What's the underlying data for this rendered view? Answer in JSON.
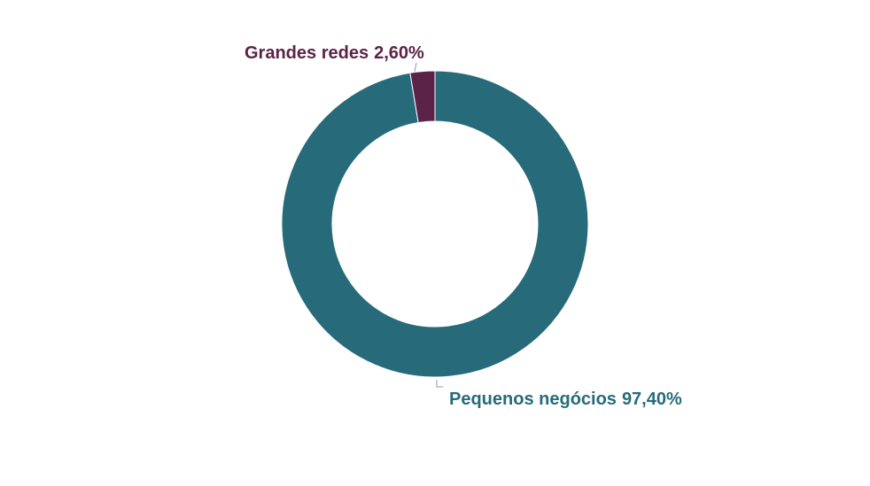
{
  "chart_data": {
    "type": "donut",
    "categories": [
      "Pequenos negócios",
      "Grandes redes"
    ],
    "values": [
      97.4,
      2.6
    ],
    "value_labels": [
      "97,40%",
      "2,60%"
    ],
    "colors": [
      "#276b7a",
      "#5c2349"
    ]
  }
}
